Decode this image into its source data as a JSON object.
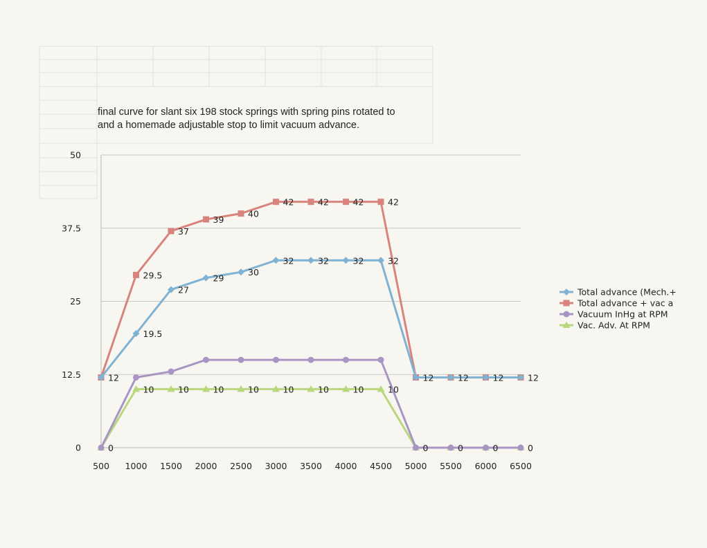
{
  "chart_data": {
    "type": "line",
    "title_lines": [
      "final curve for slant six 198 stock springs with spring pins rotated to",
      "and a homemade adjustable stop to limit vacuum advance."
    ],
    "categories": [
      "500",
      "1000",
      "1500",
      "2000",
      "2500",
      "3000",
      "3500",
      "4000",
      "4500",
      "5000",
      "5500",
      "6000",
      "6500"
    ],
    "y_ticks": [
      "0",
      "12.5",
      "25",
      "37.5",
      "50"
    ],
    "ylim": [
      0,
      50
    ],
    "xlabel": "",
    "ylabel": "",
    "grid": true,
    "legend_position": "right",
    "series": [
      {
        "name": "Total advance (Mech.+",
        "color": "#7fb2d3",
        "marker": "diamond",
        "values": [
          12,
          19.5,
          27,
          29,
          30,
          32,
          32,
          32,
          32,
          12,
          12,
          12,
          12
        ],
        "labels": [
          "12",
          "19.5",
          "27",
          "29",
          "30",
          "32",
          "32",
          "32",
          "32",
          "12",
          "12",
          "12",
          "12"
        ]
      },
      {
        "name": "Total advance + vac a",
        "color": "#d8837b",
        "marker": "square",
        "values": [
          12,
          29.5,
          37,
          39,
          40,
          42,
          42,
          42,
          42,
          12,
          12,
          12,
          12
        ],
        "labels": [
          "",
          "29.5",
          "37",
          "39",
          "40",
          "42",
          "42",
          "42",
          "42",
          "",
          "",
          "",
          ""
        ]
      },
      {
        "name": "Vacuum InHg at RPM",
        "color": "#a995c4",
        "marker": "circle",
        "values": [
          0,
          12,
          13,
          15,
          15,
          15,
          15,
          15,
          15,
          0,
          0,
          0,
          0
        ],
        "labels": [
          "0",
          "",
          "",
          "",
          "",
          "",
          "",
          "",
          "",
          "0",
          "0",
          "0",
          "0"
        ]
      },
      {
        "name": "Vac. Adv. At RPM",
        "color": "#b9d77c",
        "marker": "triangle",
        "values": [
          0,
          10,
          10,
          10,
          10,
          10,
          10,
          10,
          10,
          0,
          0,
          0,
          0
        ],
        "labels": [
          "",
          "10",
          "10",
          "10",
          "10",
          "10",
          "10",
          "10",
          "10",
          "",
          "",
          "",
          ""
        ]
      }
    ]
  }
}
